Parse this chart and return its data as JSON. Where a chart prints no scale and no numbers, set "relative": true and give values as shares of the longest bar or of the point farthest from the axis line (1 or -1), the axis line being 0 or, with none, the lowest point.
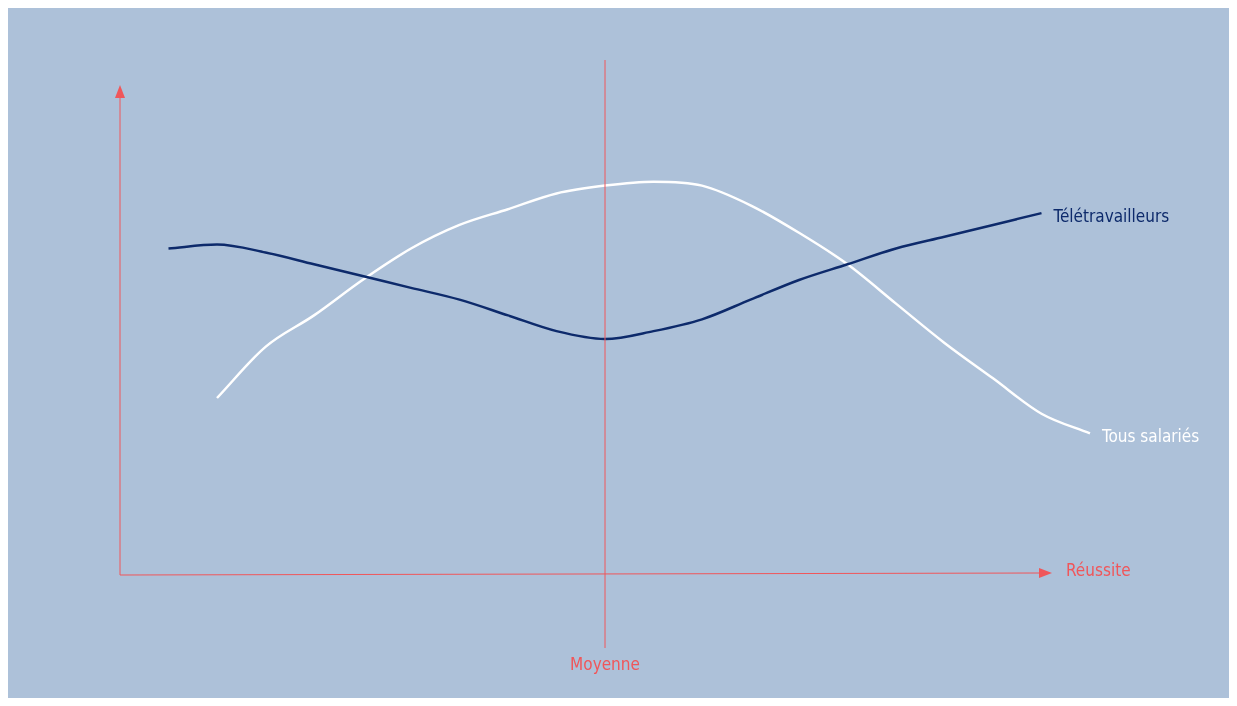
{
  "chart_data": {
    "type": "line",
    "relative": true,
    "xlabel": "Réussite",
    "legend": false,
    "categories": [
      null,
      null,
      null,
      null,
      null,
      null,
      null,
      null,
      null,
      null,
      null,
      null,
      null,
      null,
      null,
      null,
      null,
      null,
      null,
      null,
      null
    ],
    "series": [
      {
        "name": "Télétravailleurs",
        "color": "#0d2a6b",
        "values": [
          null,
          0.83,
          0.84,
          0.82,
          0.79,
          0.76,
          0.73,
          0.7,
          0.66,
          0.62,
          0.6,
          0.62,
          0.65,
          0.7,
          0.75,
          0.79,
          0.83,
          0.86,
          0.89,
          0.92,
          null
        ]
      },
      {
        "name": "Tous salariés",
        "color": "#ffffff",
        "values": [
          null,
          null,
          0.45,
          0.58,
          0.66,
          0.75,
          0.83,
          0.89,
          0.93,
          0.97,
          0.99,
          1,
          0.99,
          0.94,
          0.87,
          0.79,
          0.69,
          0.59,
          0.5,
          0.41,
          0.36
        ]
      }
    ],
    "annotations": [
      "Moyenne"
    ]
  }
}
